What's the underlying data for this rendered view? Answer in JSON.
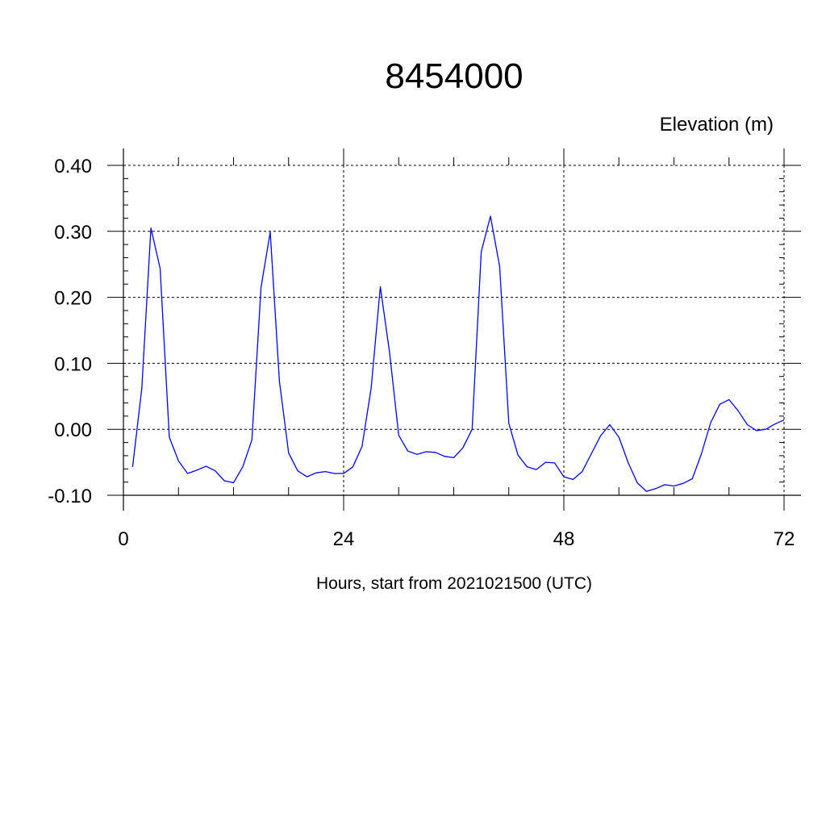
{
  "chart_data": {
    "type": "line",
    "title": "8454000",
    "subtitle": "Elevation (m)",
    "xlabel": "Hours, start from 2021021500 (UTC)",
    "ylabel": "",
    "xlim": [
      0,
      72
    ],
    "ylim": [
      -0.1,
      0.4
    ],
    "x_ticks": [
      0,
      24,
      48,
      72
    ],
    "x_tick_labels": [
      "0",
      "24",
      "48",
      "72"
    ],
    "y_ticks": [
      -0.1,
      0.0,
      0.1,
      0.2,
      0.3,
      0.4
    ],
    "y_tick_labels": [
      "-0.10",
      "0.00",
      "0.10",
      "0.20",
      "0.30",
      "0.40"
    ],
    "grid": true,
    "line_color": "#0000ff",
    "series": [
      {
        "x": [
          1,
          2,
          3,
          4,
          5,
          6,
          7,
          8,
          9,
          10,
          11,
          12,
          13,
          14,
          15,
          16,
          17,
          18,
          19,
          20,
          21,
          22,
          23,
          24,
          25,
          26,
          27,
          28,
          29,
          30,
          31,
          32,
          33,
          34,
          35,
          36,
          37,
          38,
          39,
          40,
          41,
          42,
          43,
          44,
          45,
          46,
          47,
          48,
          49,
          50,
          51,
          52,
          53,
          54,
          55,
          56,
          57,
          58,
          59,
          60,
          61,
          62,
          63,
          64,
          65,
          66,
          67,
          68,
          69,
          70,
          71,
          72
        ],
        "values": [
          -0.057,
          0.062,
          0.305,
          0.244,
          -0.012,
          -0.048,
          -0.067,
          -0.062,
          -0.056,
          -0.063,
          -0.078,
          -0.081,
          -0.057,
          -0.016,
          0.215,
          0.299,
          0.073,
          -0.036,
          -0.063,
          -0.072,
          -0.066,
          -0.064,
          -0.067,
          -0.067,
          -0.057,
          -0.026,
          0.062,
          0.216,
          0.117,
          -0.009,
          -0.033,
          -0.038,
          -0.034,
          -0.035,
          -0.041,
          -0.043,
          -0.028,
          0.0,
          0.269,
          0.323,
          0.247,
          0.009,
          -0.039,
          -0.057,
          -0.061,
          -0.05,
          -0.051,
          -0.072,
          -0.076,
          -0.064,
          -0.037,
          -0.01,
          0.007,
          -0.012,
          -0.05,
          -0.081,
          -0.094,
          -0.09,
          -0.084,
          -0.086,
          -0.082,
          -0.075,
          -0.037,
          0.01,
          0.038,
          0.045,
          0.028,
          0.007,
          -0.002,
          0.0,
          0.008,
          0.014
        ]
      }
    ]
  }
}
